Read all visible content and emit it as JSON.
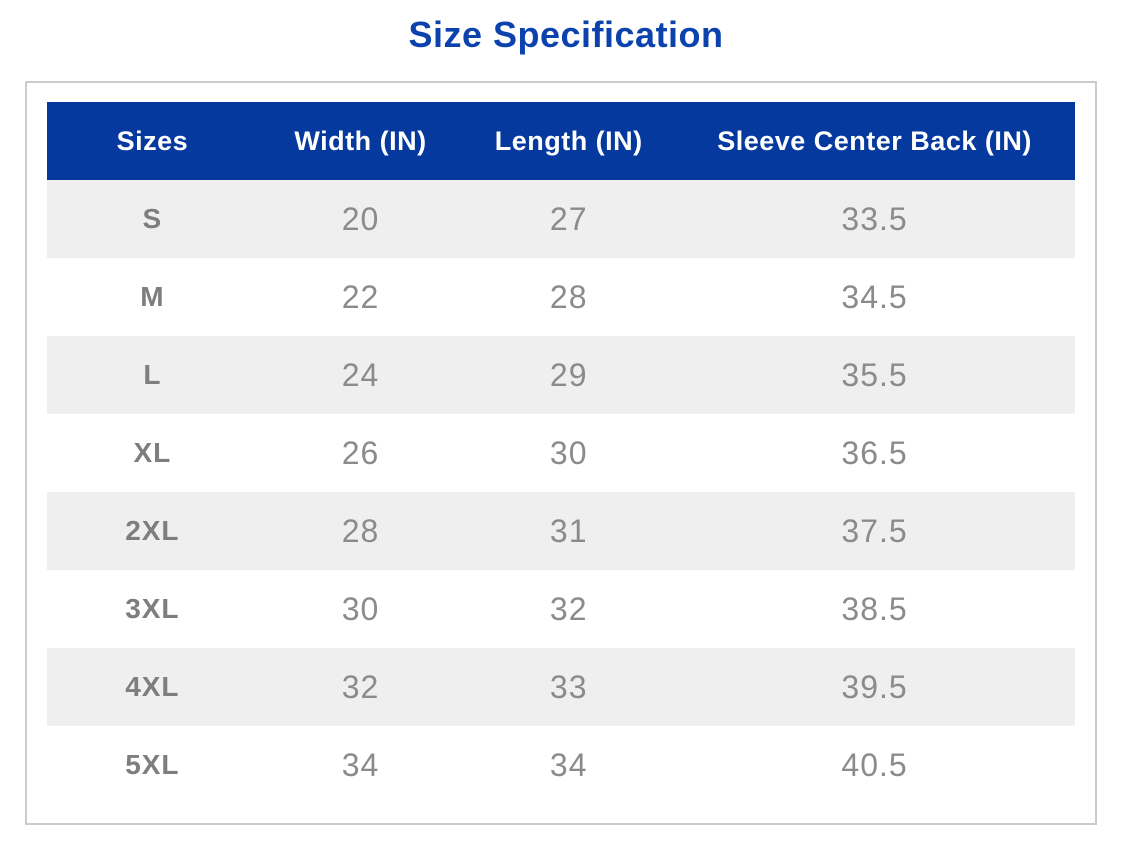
{
  "page": {
    "title": "Size Specification"
  },
  "colors": {
    "title_blue": "#0b42ad",
    "header_blue": "#05399e",
    "stripe_gray": "#efefef",
    "border_gray": "#cbcbcb",
    "label_gray": "#7e7e7e",
    "value_gray": "#8b8b8b"
  },
  "table": {
    "columns": [
      "Sizes",
      "Width (IN)",
      "Length (IN)",
      "Sleeve Center Back (IN)"
    ],
    "rows": [
      {
        "size": "S",
        "width": "20",
        "length": "27",
        "sleeve": "33.5"
      },
      {
        "size": "M",
        "width": "22",
        "length": "28",
        "sleeve": "34.5"
      },
      {
        "size": "L",
        "width": "24",
        "length": "29",
        "sleeve": "35.5"
      },
      {
        "size": "XL",
        "width": "26",
        "length": "30",
        "sleeve": "36.5"
      },
      {
        "size": "2XL",
        "width": "28",
        "length": "31",
        "sleeve": "37.5"
      },
      {
        "size": "3XL",
        "width": "30",
        "length": "32",
        "sleeve": "38.5"
      },
      {
        "size": "4XL",
        "width": "32",
        "length": "33",
        "sleeve": "39.5"
      },
      {
        "size": "5XL",
        "width": "34",
        "length": "34",
        "sleeve": "40.5"
      }
    ]
  }
}
